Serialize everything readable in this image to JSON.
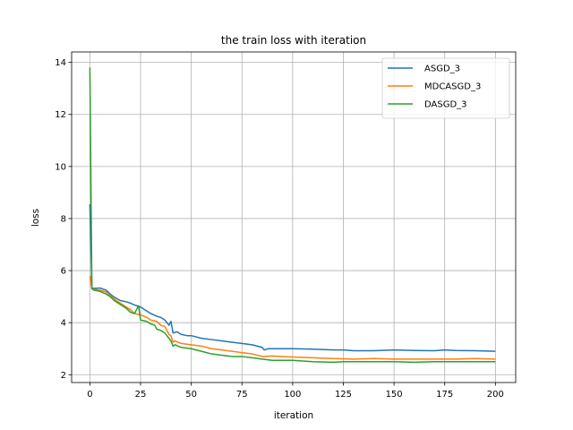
{
  "chart_data": {
    "type": "line",
    "title": "the train loss with iteration",
    "xlabel": "iteration",
    "ylabel": "loss",
    "xlim": [
      -9,
      210
    ],
    "ylim": [
      1.7,
      14.4
    ],
    "xticks": [
      0,
      25,
      50,
      75,
      100,
      125,
      150,
      175,
      200
    ],
    "yticks": [
      2,
      4,
      6,
      8,
      10,
      12,
      14
    ],
    "grid": true,
    "legend_position": "top-right",
    "series": [
      {
        "name": "ASGD_3",
        "color": "#1f77b4",
        "x": [
          0,
          1,
          2,
          5,
          8,
          10,
          12,
          15,
          18,
          20,
          22,
          25,
          28,
          30,
          33,
          35,
          37,
          39,
          40,
          41,
          43,
          45,
          48,
          50,
          55,
          60,
          65,
          70,
          75,
          80,
          85,
          86,
          88,
          90,
          95,
          100,
          110,
          120,
          125,
          130,
          140,
          150,
          160,
          170,
          175,
          180,
          190,
          200
        ],
        "values": [
          8.55,
          5.32,
          5.32,
          5.33,
          5.25,
          5.1,
          4.98,
          4.85,
          4.8,
          4.75,
          4.68,
          4.6,
          4.45,
          4.35,
          4.25,
          4.2,
          4.1,
          3.9,
          4.05,
          3.6,
          3.65,
          3.55,
          3.5,
          3.5,
          3.4,
          3.35,
          3.3,
          3.25,
          3.2,
          3.15,
          3.05,
          2.95,
          3.0,
          3.0,
          3.0,
          3.0,
          2.98,
          2.95,
          2.95,
          2.92,
          2.92,
          2.95,
          2.93,
          2.92,
          2.95,
          2.93,
          2.92,
          2.9
        ]
      },
      {
        "name": "MDCASGD_3",
        "color": "#ff7f0e",
        "x": [
          0,
          1,
          2,
          5,
          8,
          10,
          12,
          15,
          18,
          20,
          22,
          25,
          28,
          30,
          33,
          35,
          37,
          38,
          39,
          40,
          41,
          42,
          45,
          50,
          55,
          60,
          65,
          70,
          75,
          80,
          85,
          90,
          95,
          100,
          110,
          120,
          130,
          140,
          150,
          160,
          170,
          180,
          190,
          200
        ],
        "values": [
          5.8,
          5.3,
          5.28,
          5.25,
          5.18,
          5.05,
          4.9,
          4.75,
          4.6,
          4.5,
          4.35,
          4.3,
          4.2,
          4.1,
          4.05,
          3.9,
          3.85,
          3.7,
          3.55,
          3.5,
          3.25,
          3.3,
          3.2,
          3.15,
          3.1,
          3.0,
          2.95,
          2.9,
          2.85,
          2.8,
          2.7,
          2.72,
          2.7,
          2.68,
          2.65,
          2.62,
          2.6,
          2.62,
          2.6,
          2.6,
          2.6,
          2.6,
          2.62,
          2.6
        ]
      },
      {
        "name": "DASGD_3",
        "color": "#2ca02c",
        "x": [
          0,
          1,
          2,
          5,
          8,
          10,
          12,
          15,
          18,
          20,
          22,
          24,
          25,
          28,
          30,
          32,
          33,
          35,
          37,
          38,
          39,
          40,
          41,
          42,
          45,
          50,
          55,
          60,
          65,
          70,
          75,
          80,
          85,
          90,
          95,
          100,
          110,
          120,
          125,
          130,
          140,
          150,
          160,
          170,
          180,
          190,
          200
        ],
        "values": [
          13.8,
          5.3,
          5.25,
          5.2,
          5.1,
          5.0,
          4.85,
          4.7,
          4.55,
          4.4,
          4.35,
          4.65,
          4.1,
          4.05,
          3.95,
          3.9,
          3.75,
          3.7,
          3.6,
          3.5,
          3.4,
          3.3,
          3.1,
          3.15,
          3.05,
          3.0,
          2.9,
          2.8,
          2.75,
          2.7,
          2.7,
          2.65,
          2.6,
          2.55,
          2.55,
          2.55,
          2.5,
          2.48,
          2.5,
          2.5,
          2.5,
          2.5,
          2.48,
          2.5,
          2.5,
          2.5,
          2.5
        ]
      }
    ]
  }
}
